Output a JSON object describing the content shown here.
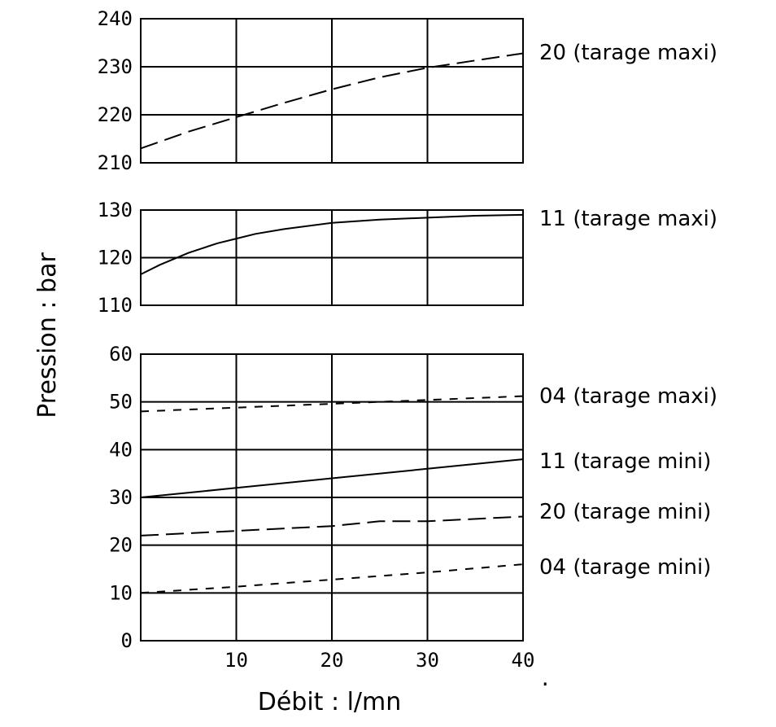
{
  "chart_data": {
    "type": "line",
    "xlabel": "Débit : l/mn",
    "ylabel": "Pression : bar",
    "xlim": [
      0,
      40
    ],
    "x_ticks": [
      "10",
      "20",
      "30",
      "40"
    ],
    "grid": true,
    "panels": [
      {
        "ylim": [
          210,
          240
        ],
        "y_ticks": [
          "210",
          "220",
          "230",
          "240"
        ],
        "series": [
          {
            "name": "20 (tarage maxi)",
            "style": "long-dash",
            "points": [
              [
                0,
                213
              ],
              [
                5,
                216.5
              ],
              [
                10,
                219.5
              ],
              [
                15,
                222.5
              ],
              [
                20,
                225.3
              ],
              [
                25,
                227.8
              ],
              [
                30,
                229.8
              ],
              [
                35,
                231.3
              ],
              [
                40,
                232.8
              ]
            ]
          }
        ]
      },
      {
        "ylim": [
          110,
          130
        ],
        "y_ticks": [
          "110",
          "120",
          "130"
        ],
        "series": [
          {
            "name": "11 (tarage maxi)",
            "style": "solid",
            "points": [
              [
                0,
                116.5
              ],
              [
                2,
                118.5
              ],
              [
                5,
                121
              ],
              [
                8,
                123
              ],
              [
                10,
                124
              ],
              [
                12,
                125
              ],
              [
                15,
                126
              ],
              [
                20,
                127.3
              ],
              [
                25,
                128
              ],
              [
                30,
                128.4
              ],
              [
                35,
                128.8
              ],
              [
                40,
                129
              ]
            ]
          }
        ]
      },
      {
        "ylim": [
          0,
          60
        ],
        "y_ticks": [
          "0",
          "10",
          "20",
          "30",
          "40",
          "50",
          "60"
        ],
        "series": [
          {
            "name": "04 (tarage maxi)",
            "style": "short-dash",
            "points": [
              [
                0,
                48
              ],
              [
                10,
                48.8
              ],
              [
                20,
                49.6
              ],
              [
                30,
                50.4
              ],
              [
                40,
                51.2
              ]
            ]
          },
          {
            "name": "11 (tarage mini)",
            "style": "solid",
            "points": [
              [
                0,
                30
              ],
              [
                10,
                32
              ],
              [
                20,
                34
              ],
              [
                30,
                36
              ],
              [
                40,
                38
              ]
            ]
          },
          {
            "name": "20 (tarage mini)",
            "style": "long-dash",
            "points": [
              [
                0,
                22
              ],
              [
                10,
                23
              ],
              [
                20,
                24
              ],
              [
                25,
                25
              ],
              [
                30,
                25
              ],
              [
                40,
                26
              ]
            ]
          },
          {
            "name": "04 (tarage mini)",
            "style": "short-dash",
            "points": [
              [
                0,
                10
              ],
              [
                10,
                11.3
              ],
              [
                20,
                12.8
              ],
              [
                30,
                14.3
              ],
              [
                40,
                16
              ]
            ]
          }
        ]
      }
    ],
    "footnote": "."
  }
}
